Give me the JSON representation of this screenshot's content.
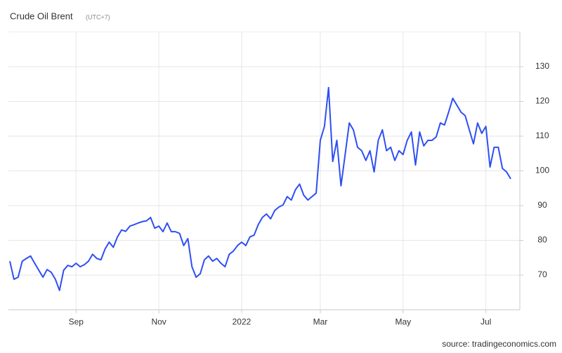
{
  "chart_data": {
    "type": "line",
    "title": "Crude Oil Brent",
    "subtitle": "(UTC+7)",
    "source": "source: tradingeconomics.com",
    "categories": [
      null,
      null,
      null,
      null,
      null,
      null,
      null,
      null,
      null,
      null,
      null,
      null,
      null,
      null,
      null,
      null,
      "Sep",
      null,
      null,
      null,
      null,
      null,
      null,
      null,
      null,
      null,
      null,
      null,
      null,
      null,
      null,
      null,
      null,
      null,
      null,
      null,
      "Nov",
      null,
      null,
      null,
      null,
      null,
      null,
      null,
      null,
      null,
      null,
      null,
      null,
      null,
      null,
      null,
      null,
      null,
      null,
      null,
      "2022",
      null,
      null,
      null,
      null,
      null,
      null,
      null,
      null,
      null,
      null,
      null,
      null,
      null,
      null,
      null,
      null,
      null,
      null,
      "Mar",
      null,
      null,
      null,
      null,
      null,
      null,
      null,
      null,
      null,
      null,
      null,
      null,
      null,
      null,
      null,
      null,
      null,
      null,
      null,
      "May",
      null,
      null,
      null,
      null,
      null,
      null,
      null,
      null,
      null,
      null,
      null,
      null,
      null,
      null,
      null,
      null,
      null,
      null,
      null,
      "Jul",
      null,
      null,
      null,
      null,
      null,
      null
    ],
    "series": [
      {
        "name": "Crude Oil Brent",
        "color": "#2f4ff2",
        "values": [
          74,
          68.8,
          69.4,
          74,
          74.8,
          75.5,
          73.4,
          71.4,
          69.4,
          71.6,
          70.8,
          68.8,
          65.6,
          71.4,
          72.8,
          72.4,
          73.4,
          72.4,
          73,
          74,
          76,
          74.8,
          74.4,
          77.5,
          79.5,
          78,
          81,
          83,
          82.6,
          84.1,
          84.5,
          85,
          85.4,
          85.6,
          86.6,
          83.5,
          84.1,
          82.5,
          85,
          82.5,
          82.5,
          82,
          78.5,
          80.5,
          72.4,
          69.4,
          70.4,
          74.4,
          75.5,
          74,
          74.8,
          73.4,
          72.4,
          76,
          76.9,
          78.5,
          79.5,
          78.5,
          81,
          81.5,
          84.5,
          86.6,
          87.6,
          86.2,
          88.6,
          89.6,
          90.2,
          92.6,
          91.6,
          94.6,
          96.2,
          93,
          91.6,
          92.6,
          93.6,
          108.8,
          112.8,
          124,
          102.7,
          108.8,
          95.7,
          104.7,
          113.8,
          111.8,
          106.8,
          105.8,
          103,
          105.8,
          99.7,
          108.8,
          111.8,
          105.8,
          106.8,
          103,
          105.8,
          104.7,
          108.8,
          111.2,
          101.7,
          111.2,
          107.2,
          108.8,
          108.8,
          109.8,
          113.8,
          113.2,
          116.9,
          120.9,
          118.9,
          116.9,
          115.9,
          111.8,
          107.8,
          113.8,
          110.8,
          112.8,
          101.1,
          106.8,
          106.8,
          100.7,
          99.7,
          97.7
        ]
      }
    ],
    "ylim": [
      60,
      140
    ],
    "yticks": [
      70,
      80,
      90,
      100,
      110,
      120,
      130
    ],
    "grid": true
  }
}
